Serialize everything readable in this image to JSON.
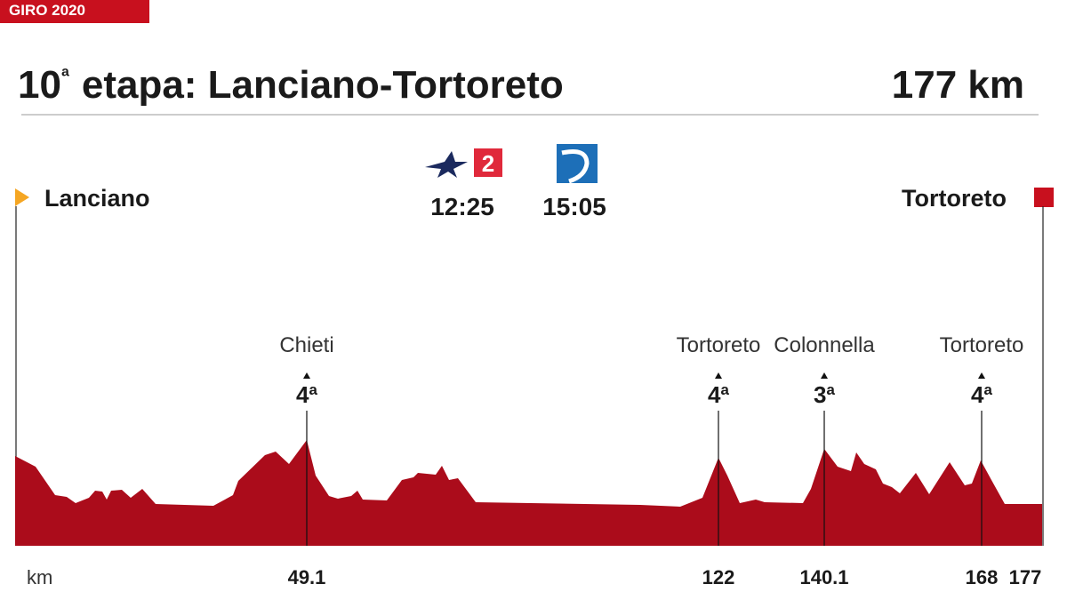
{
  "header": {
    "tag": "GIRO 2020",
    "title_number": "10",
    "title_suffix": "ª",
    "title_rest": "etapa: Lanciano-Tortoreto",
    "distance": "177 km"
  },
  "start": "Lanciano",
  "finish": "Tortoreto",
  "broadcasts": [
    {
      "channel": "2",
      "time": "12:25"
    },
    {
      "time": "15:05"
    }
  ],
  "climbs": [
    {
      "name": "Chieti",
      "category": "4ª",
      "km": "49.1"
    },
    {
      "name": "Tortoreto",
      "category": "4ª",
      "km": "122"
    },
    {
      "name": "Colonnella",
      "category": "3ª",
      "km": "140.1"
    },
    {
      "name": "Tortoreto",
      "category": "4ª",
      "km": "168"
    }
  ],
  "axis": {
    "unit": "km",
    "end": "177"
  }
}
